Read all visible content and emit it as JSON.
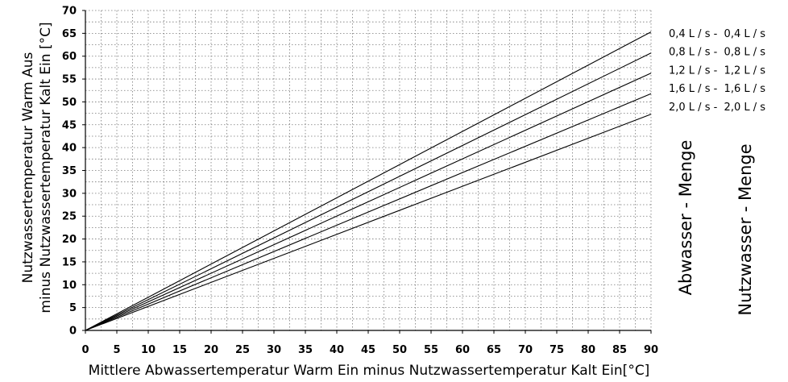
{
  "chart_data": {
    "type": "line",
    "xlabel": "Mittlere Abwassertemperatur Warm Ein minus Nutzwassertemperatur Kalt Ein[°C]",
    "ylabel_line1": "Nutzwassertemperatur Warm Aus",
    "ylabel_line2": "minus Nutzwassertemperatur Kalt Ein [°C]",
    "xlim": [
      0,
      90
    ],
    "ylim": [
      0,
      70
    ],
    "xticks": [
      "0",
      "5",
      "10",
      "15",
      "20",
      "25",
      "30",
      "35",
      "40",
      "45",
      "50",
      "55",
      "60",
      "65",
      "70",
      "75",
      "80",
      "85",
      "90"
    ],
    "yticks": [
      "0",
      "5",
      "10",
      "15",
      "20",
      "25",
      "30",
      "35",
      "40",
      "45",
      "50",
      "55",
      "60",
      "65",
      "70"
    ],
    "grid": true,
    "legend_position": "right",
    "legend_column_titles": [
      "Abwasser - Menge",
      "Nutzwasser - Menge"
    ],
    "series": [
      {
        "name": "0,4 L / s -  0,4 L / s",
        "x": [
          0,
          90
        ],
        "y": [
          0,
          65.3
        ]
      },
      {
        "name": "0,8 L / s -  0,8 L / s",
        "x": [
          0,
          90
        ],
        "y": [
          0,
          60.7
        ]
      },
      {
        "name": "1,2 L / s -  1,2 L / s",
        "x": [
          0,
          90
        ],
        "y": [
          0,
          56.3
        ]
      },
      {
        "name": "1,6 L / s -  1,6 L / s",
        "x": [
          0,
          90
        ],
        "y": [
          0,
          51.8
        ]
      },
      {
        "name": "2,0 L / s -  2,0 L / s",
        "x": [
          0,
          90
        ],
        "y": [
          0,
          47.3
        ]
      }
    ]
  }
}
